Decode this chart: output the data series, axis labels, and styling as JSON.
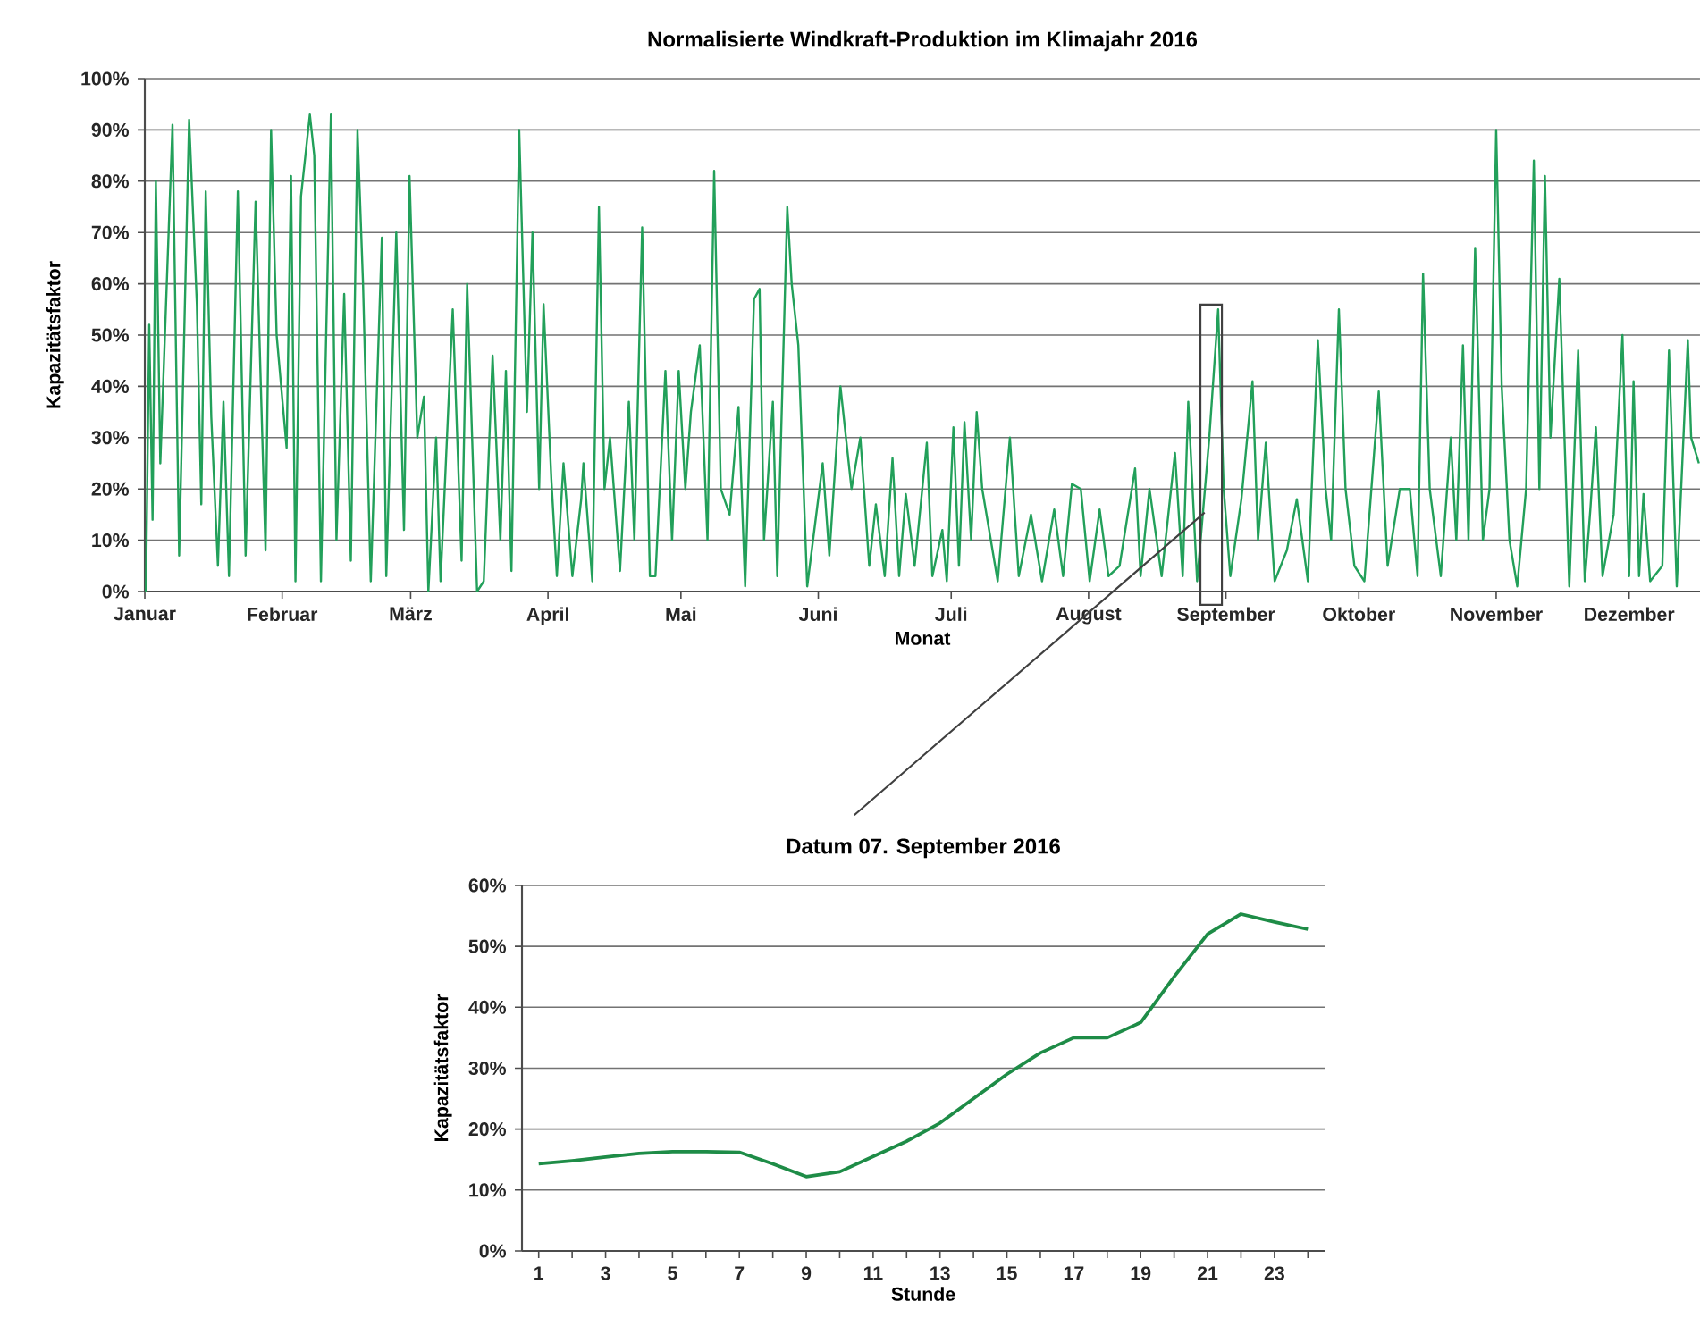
{
  "chart_data": [
    {
      "type": "line",
      "title": "Normalisierte Windkraft-Produktion im Klimajahr 2016",
      "xlabel": "Monat",
      "ylabel": "Kapazitätsfaktor",
      "color": "#22a05a",
      "grid": "y",
      "x": [
        "2016-01-01T06:00",
        "2016-01-02T00:00",
        "2016-01-02T18:00",
        "2016-01-03T12:00",
        "2016-01-04T12:00",
        "2016-01-07T06:00",
        "2016-01-08T18:00",
        "2016-01-11T00:00",
        "2016-01-12T18:00",
        "2016-01-13T18:00",
        "2016-01-14T18:00",
        "2016-01-16T00:00",
        "2016-01-17T12:00",
        "2016-01-18T18:00",
        "2016-01-20T00:00",
        "2016-01-22T00:00",
        "2016-01-23T18:00",
        "2016-01-26T00:00",
        "2016-01-28T06:00",
        "2016-01-29T12:00",
        "2016-01-30T18:00",
        "2016-02-02T00:00",
        "2016-02-03T00:00",
        "2016-02-04T00:00",
        "2016-02-05T06:00",
        "2016-02-07T06:00",
        "2016-02-08T06:00",
        "2016-02-09T18:00",
        "2016-02-12T00:00",
        "2016-02-13T06:00",
        "2016-02-15T00:00",
        "2016-02-16T12:00",
        "2016-02-18T00:00",
        "2016-02-19T06:00",
        "2016-02-21T00:00",
        "2016-02-23T12:00",
        "2016-02-24T12:00",
        "2016-02-26T18:00",
        "2016-02-28T12:00",
        "2016-02-29T18:00",
        "2016-03-02T12:00",
        "2016-03-04T00:00",
        "2016-03-05T00:00",
        "2016-03-06T18:00",
        "2016-03-07T18:00",
        "2016-03-10T12:00",
        "2016-03-12T12:00",
        "2016-03-13T18:00",
        "2016-03-16T00:00",
        "2016-03-17T12:00",
        "2016-03-19T12:00",
        "2016-03-21T06:00",
        "2016-03-22T12:00",
        "2016-03-23T18:00",
        "2016-03-25T12:00",
        "2016-03-27T06:00",
        "2016-03-28T12:00",
        "2016-03-30T00:00",
        "2016-03-31T00:00",
        "2016-04-01T18:00",
        "2016-04-03T00:00",
        "2016-04-04T12:00",
        "2016-04-06T12:00",
        "2016-04-08T12:00",
        "2016-04-09T00:00",
        "2016-04-11T00:00",
        "2016-04-12T12:00",
        "2016-04-13T18:00",
        "2016-04-15T00:00",
        "2016-04-17T06:00",
        "2016-04-19T06:00",
        "2016-04-20T12:00",
        "2016-04-22T06:00",
        "2016-04-24T00:00",
        "2016-04-25T06:00",
        "2016-04-27T12:00",
        "2016-04-29T00:00",
        "2016-04-30T12:00",
        "2016-05-02T00:00",
        "2016-05-03T06:00",
        "2016-05-05T06:00",
        "2016-05-07T00:00",
        "2016-05-08T12:00",
        "2016-05-10T00:00",
        "2016-05-12T00:00",
        "2016-05-14T00:00",
        "2016-05-15T12:00",
        "2016-05-17T12:00",
        "2016-05-18T18:00",
        "2016-05-19T18:00",
        "2016-05-21T18:00",
        "2016-05-22T18:00",
        "2016-05-25T00:00",
        "2016-05-26T00:00",
        "2016-05-27T12:00",
        "2016-05-29T12:00",
        "2016-06-02T00:00",
        "2016-06-03T12:00",
        "2016-06-06T00:00",
        "2016-06-08T12:00",
        "2016-06-10T12:00",
        "2016-06-12T12:00",
        "2016-06-14T00:00",
        "2016-06-16T00:00",
        "2016-06-17T18:00",
        "2016-06-19T06:00",
        "2016-06-20T18:00",
        "2016-06-22T18:00",
        "2016-06-25T12:00",
        "2016-06-26T18:00",
        "2016-06-29T00:00",
        "2016-06-30T00:00",
        "2016-07-01T12:00",
        "2016-07-02T18:00",
        "2016-07-04T00:00",
        "2016-07-05T12:00",
        "2016-07-06T18:00",
        "2016-07-08T00:00",
        "2016-07-11T12:00",
        "2016-07-14T06:00",
        "2016-07-16T06:00",
        "2016-07-19T00:00",
        "2016-07-21T12:00",
        "2016-07-24T06:00",
        "2016-07-26T06:00",
        "2016-07-28T06:00",
        "2016-07-30T06:00",
        "2016-08-01T06:00",
        "2016-08-03T12:00",
        "2016-08-05T12:00",
        "2016-08-08T00:00",
        "2016-08-11T12:00",
        "2016-08-12T18:00",
        "2016-08-14T18:00",
        "2016-08-17T12:00",
        "2016-08-20T12:00",
        "2016-08-22T06:00",
        "2016-08-23T12:00",
        "2016-08-25T12:00",
        "2016-08-28T06:00",
        "2016-08-30T06:00",
        "2016-08-31T12:00",
        "2016-09-02T00:00",
        "2016-09-04T12:00",
        "2016-09-07T00:00",
        "2016-09-08T06:00",
        "2016-09-10T00:00",
        "2016-09-12T00:00",
        "2016-09-14T18:00",
        "2016-09-17T00:00",
        "2016-09-19T12:00",
        "2016-09-21T18:00",
        "2016-09-23T12:00",
        "2016-09-24T18:00",
        "2016-09-26T12:00",
        "2016-09-28T00:00",
        "2016-09-30T00:00",
        "2016-10-02T06:00",
        "2016-10-05T12:00",
        "2016-10-07T12:00",
        "2016-10-10T06:00",
        "2016-10-12T12:00",
        "2016-10-14T06:00",
        "2016-10-15T12:00",
        "2016-10-17T00:00",
        "2016-10-19T12:00",
        "2016-10-21T18:00",
        "2016-10-23T00:00",
        "2016-10-24T12:00",
        "2016-10-25T18:00",
        "2016-10-27T06:00",
        "2016-10-29T00:00",
        "2016-10-30T12:00",
        "2016-11-01T00:00",
        "2016-11-02T06:00",
        "2016-11-04T00:00",
        "2016-11-05T18:00",
        "2016-11-07T18:00",
        "2016-11-09T12:00",
        "2016-11-10T18:00",
        "2016-11-12T00:00",
        "2016-11-13T06:00",
        "2016-11-15T06:00",
        "2016-11-17T12:00",
        "2016-11-19T12:00",
        "2016-11-21T00:00",
        "2016-11-22T06:00",
        "2016-11-23T12:00",
        "2016-11-25T00:00",
        "2016-11-27T12:00",
        "2016-11-29T12:00",
        "2016-12-01T00:00",
        "2016-12-02T00:00",
        "2016-12-03T06:00",
        "2016-12-04T06:00",
        "2016-12-05T18:00",
        "2016-12-08T12:00",
        "2016-12-10T00:00",
        "2016-12-11T18:00",
        "2016-12-14T06:00",
        "2016-12-15T00:00",
        "2016-12-16T18:00"
      ],
      "values": [
        0,
        52,
        14,
        80,
        25,
        91,
        7,
        92,
        56,
        17,
        78,
        34,
        5,
        37,
        3,
        78,
        7,
        76,
        8,
        90,
        50,
        28,
        81,
        2,
        77,
        93,
        85,
        2,
        93,
        10,
        58,
        6,
        90,
        60,
        2,
        69,
        3,
        70,
        12,
        81,
        30,
        38,
        0,
        30,
        2,
        55,
        6,
        60,
        0,
        2,
        46,
        10,
        43,
        4,
        90,
        35,
        70,
        20,
        56,
        22,
        3,
        25,
        3,
        18,
        25,
        2,
        75,
        20,
        30,
        4,
        37,
        10,
        71,
        3,
        3,
        43,
        10,
        43,
        20,
        35,
        48,
        10,
        82,
        20,
        15,
        36,
        1,
        57,
        59,
        10,
        37,
        3,
        75,
        60,
        48,
        1,
        25,
        7,
        40,
        20,
        30,
        5,
        17,
        3,
        26,
        3,
        19,
        5,
        29,
        3,
        12,
        2,
        32,
        5,
        33,
        10,
        35,
        20,
        2,
        30,
        3,
        15,
        2,
        16,
        3,
        21,
        20,
        2,
        16,
        3,
        5,
        24,
        3,
        20,
        3,
        27,
        3,
        37,
        2,
        30,
        55,
        20,
        3,
        18,
        41,
        10,
        29,
        2,
        8,
        18,
        2,
        49,
        20,
        10,
        55,
        20,
        5,
        2,
        39,
        5,
        20,
        20,
        3,
        62,
        20,
        3,
        30,
        10,
        48,
        10,
        67,
        10,
        20,
        90,
        40,
        10,
        1,
        20,
        84,
        20,
        81,
        30,
        61,
        1,
        47,
        2,
        16,
        32,
        3,
        15,
        50,
        3,
        41,
        3,
        19,
        2,
        5,
        47,
        1,
        49,
        30,
        25
      ],
      "xlim": [
        "2016-01-01",
        "2016-12-17"
      ],
      "xticks": [
        {
          "value": "2016-01-01",
          "label": "Januar"
        },
        {
          "value": "2016-02-01",
          "label": "Februar"
        },
        {
          "value": "2016-03-01",
          "label": "März"
        },
        {
          "value": "2016-04-01",
          "label": "April"
        },
        {
          "value": "2016-05-01",
          "label": "Mai"
        },
        {
          "value": "2016-06-01",
          "label": "Juni"
        },
        {
          "value": "2016-07-01",
          "label": "Juli"
        },
        {
          "value": "2016-08-01",
          "label": "August"
        },
        {
          "value": "2016-09-01",
          "label": "September"
        },
        {
          "value": "2016-10-01",
          "label": "Oktober"
        },
        {
          "value": "2016-11-01",
          "label": "November"
        },
        {
          "value": "2016-12-01",
          "label": "Dezember"
        }
      ],
      "ylim": [
        0,
        100
      ],
      "yticks": [
        {
          "value": 0,
          "label": "0%"
        },
        {
          "value": 10,
          "label": "10%"
        },
        {
          "value": 20,
          "label": "20%"
        },
        {
          "value": 30,
          "label": "30%"
        },
        {
          "value": 40,
          "label": "40%"
        },
        {
          "value": 50,
          "label": "50%"
        },
        {
          "value": 60,
          "label": "60%"
        },
        {
          "value": 70,
          "label": "70%"
        },
        {
          "value": 80,
          "label": "80%"
        },
        {
          "value": 90,
          "label": "90%"
        },
        {
          "value": 100,
          "label": "100%"
        }
      ]
    },
    {
      "type": "line",
      "title": "Datum 07. September 2016",
      "xlabel": "Stunde",
      "ylabel": "Kapazitätsfaktor",
      "color": "#1e8c47",
      "grid": "y",
      "x": [
        1,
        2,
        3,
        4,
        5,
        6,
        7,
        8,
        9,
        10,
        11,
        12,
        13,
        14,
        15,
        16,
        17,
        18,
        19,
        20,
        21,
        22,
        23,
        24
      ],
      "values": [
        14.3,
        14.8,
        15.4,
        16,
        16.3,
        16.3,
        16.2,
        14.3,
        12.2,
        13,
        15.5,
        18,
        21,
        25,
        29,
        32.5,
        35,
        35,
        37.5,
        45,
        52,
        55.3,
        54,
        52.8
      ],
      "xlim": [
        0.5,
        24.5
      ],
      "xticks": [
        1,
        {
          "value": 2,
          "label": null
        },
        3,
        {
          "value": 4,
          "label": null
        },
        5,
        {
          "value": 6,
          "label": null
        },
        7,
        {
          "value": 8,
          "label": null
        },
        9,
        {
          "value": 10,
          "label": null
        },
        11,
        {
          "value": 12,
          "label": null
        },
        13,
        {
          "value": 14,
          "label": null
        },
        15,
        {
          "value": 16,
          "label": null
        },
        17,
        {
          "value": 18,
          "label": null
        },
        19,
        {
          "value": 20,
          "label": null
        },
        21,
        {
          "value": 22,
          "label": null
        },
        23,
        {
          "value": 24,
          "label": null
        }
      ],
      "ylim": [
        0,
        60
      ],
      "yticks": [
        {
          "value": 0,
          "label": "0%"
        },
        {
          "value": 10,
          "label": "10%"
        },
        {
          "value": 20,
          "label": "20%"
        },
        {
          "value": 30,
          "label": "30%"
        },
        {
          "value": 40,
          "label": "40%"
        },
        {
          "value": 50,
          "label": "50%"
        },
        {
          "value": 60,
          "label": "60%"
        }
      ]
    }
  ]
}
